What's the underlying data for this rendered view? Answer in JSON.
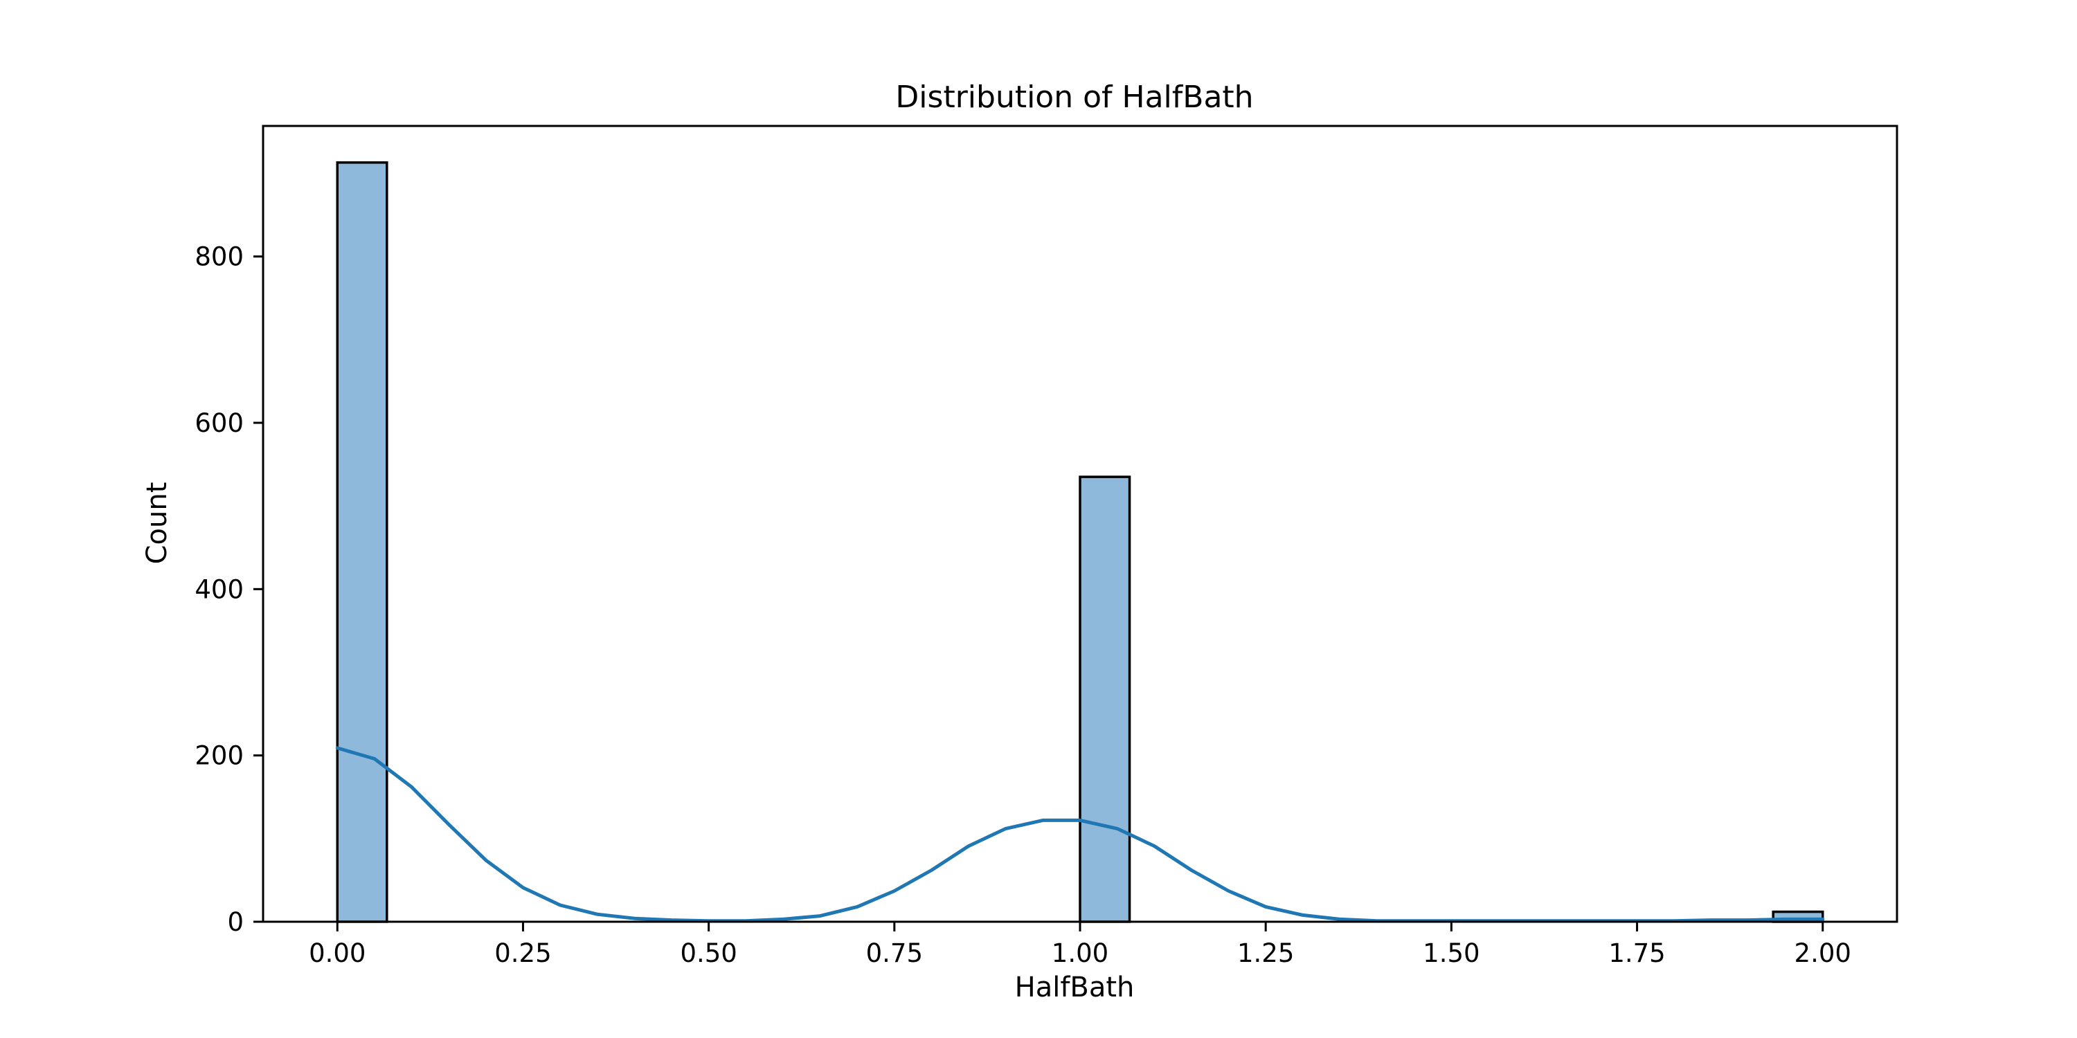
{
  "chart_data": {
    "type": "bar",
    "title": "Distribution of HalfBath",
    "xlabel": "HalfBath",
    "ylabel": "Count",
    "xlim": [
      -0.1,
      2.1
    ],
    "ylim": [
      0,
      957
    ],
    "grid": false,
    "x_ticks": [
      {
        "value": 0.0,
        "label": "0.00"
      },
      {
        "value": 0.25,
        "label": "0.25"
      },
      {
        "value": 0.5,
        "label": "0.50"
      },
      {
        "value": 0.75,
        "label": "0.75"
      },
      {
        "value": 1.0,
        "label": "1.00"
      },
      {
        "value": 1.25,
        "label": "1.25"
      },
      {
        "value": 1.5,
        "label": "1.50"
      },
      {
        "value": 1.75,
        "label": "1.75"
      },
      {
        "value": 2.0,
        "label": "2.00"
      }
    ],
    "y_ticks": [
      {
        "value": 0,
        "label": "0"
      },
      {
        "value": 200,
        "label": "200"
      },
      {
        "value": 400,
        "label": "400"
      },
      {
        "value": 600,
        "label": "600"
      },
      {
        "value": 800,
        "label": "800"
      }
    ],
    "bins": [
      {
        "x0": 0.0,
        "x1": 0.0667,
        "count": 913
      },
      {
        "x0": 1.0,
        "x1": 1.0667,
        "count": 535
      },
      {
        "x0": 1.9333,
        "x1": 2.0,
        "count": 12
      }
    ],
    "kde": {
      "x": [
        0.0,
        0.05,
        0.1,
        0.15,
        0.2,
        0.25,
        0.3,
        0.35,
        0.4,
        0.45,
        0.5,
        0.55,
        0.6,
        0.65,
        0.7,
        0.75,
        0.8,
        0.85,
        0.9,
        0.95,
        1.0,
        1.05,
        1.1,
        1.15,
        1.2,
        1.25,
        1.3,
        1.35,
        1.4,
        1.45,
        1.5,
        1.55,
        1.6,
        1.65,
        1.7,
        1.75,
        1.8,
        1.85,
        1.9,
        1.95,
        2.0
      ],
      "y": [
        209,
        196,
        162,
        117,
        74,
        41,
        20,
        9,
        4,
        2,
        1,
        1,
        3,
        7,
        18,
        37,
        62,
        91,
        112,
        122,
        122,
        112,
        91,
        62,
        37,
        18,
        8,
        3,
        1,
        1,
        1,
        1,
        1,
        1,
        1,
        1,
        1,
        2,
        2,
        3,
        3
      ]
    },
    "colors": {
      "bar_fill": "#8fb9da",
      "bar_edge": "#000000",
      "kde_line": "#1f77b4"
    }
  }
}
